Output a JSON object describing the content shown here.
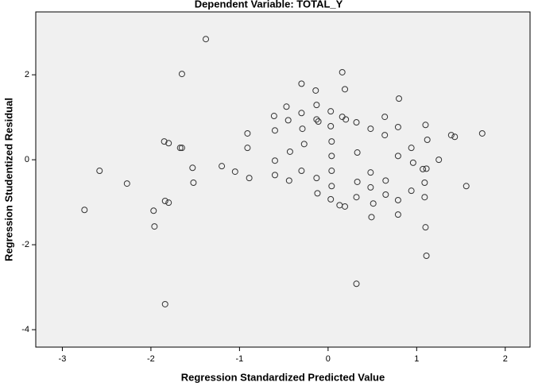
{
  "chart_data": {
    "type": "scatter",
    "title": "Dependent Variable: TOTAL_Y",
    "xlabel": "Regression Standardized Predicted Value",
    "ylabel": "Regression Studentized Residual",
    "x": [
      -2.75,
      -2.58,
      -2.27,
      -1.97,
      -1.96,
      -1.85,
      -1.8,
      -1.84,
      -1.8,
      -1.84,
      -1.65,
      -1.67,
      -1.65,
      -1.53,
      -1.52,
      -1.38,
      -1.2,
      -1.05,
      -0.91,
      -0.91,
      -0.89,
      -0.61,
      -0.6,
      -0.6,
      -0.6,
      -0.47,
      -0.45,
      -0.43,
      -0.44,
      -0.3,
      -0.3,
      -0.29,
      -0.27,
      -0.3,
      -0.14,
      -0.13,
      -0.13,
      -0.11,
      -0.13,
      -0.12,
      0.03,
      0.03,
      0.04,
      0.04,
      0.04,
      0.04,
      0.03,
      0.16,
      0.19,
      0.16,
      0.2,
      0.13,
      0.19,
      0.32,
      0.33,
      0.33,
      0.32,
      0.32,
      0.48,
      0.48,
      0.48,
      0.51,
      0.49,
      0.64,
      0.64,
      0.65,
      0.65,
      0.8,
      0.79,
      0.79,
      0.79,
      0.79,
      0.94,
      0.96,
      0.94,
      1.07,
      1.09,
      1.09,
      1.1,
      1.12,
      1.11,
      1.1,
      1.11,
      1.25,
      1.39,
      1.43,
      1.56,
      1.74
    ],
    "values": [
      -1.18,
      -0.26,
      -0.56,
      -1.2,
      -1.57,
      0.43,
      0.39,
      -0.97,
      -1.01,
      -3.4,
      2.02,
      0.28,
      0.28,
      -0.19,
      -0.54,
      2.84,
      -0.15,
      -0.28,
      0.62,
      0.28,
      -0.43,
      1.03,
      0.69,
      -0.02,
      -0.36,
      1.25,
      0.93,
      0.19,
      -0.49,
      1.79,
      1.1,
      0.73,
      0.37,
      -0.26,
      1.63,
      1.29,
      0.95,
      0.9,
      -0.43,
      -0.79,
      1.14,
      0.79,
      0.43,
      0.09,
      -0.26,
      -0.62,
      -0.93,
      2.06,
      1.66,
      1.01,
      0.95,
      -1.07,
      -1.1,
      0.88,
      0.17,
      -0.52,
      -0.88,
      -2.92,
      0.73,
      -0.3,
      -0.65,
      -1.03,
      -1.35,
      1.01,
      0.58,
      -0.49,
      -0.82,
      1.44,
      0.77,
      0.09,
      -0.95,
      -1.29,
      0.28,
      -0.07,
      -0.73,
      -0.22,
      -0.54,
      -0.88,
      0.82,
      0.47,
      -0.21,
      -1.59,
      -2.26,
      0.0,
      0.58,
      0.54,
      -0.62,
      0.62
    ],
    "xlim": [
      -3.3,
      2.28
    ],
    "xticks": [
      -3,
      -2,
      -1,
      0,
      1,
      2
    ],
    "ylim": [
      -4.41,
      3.48
    ],
    "yticks": [
      -4,
      -2,
      0,
      2
    ],
    "color": "#333333",
    "grid": false
  }
}
